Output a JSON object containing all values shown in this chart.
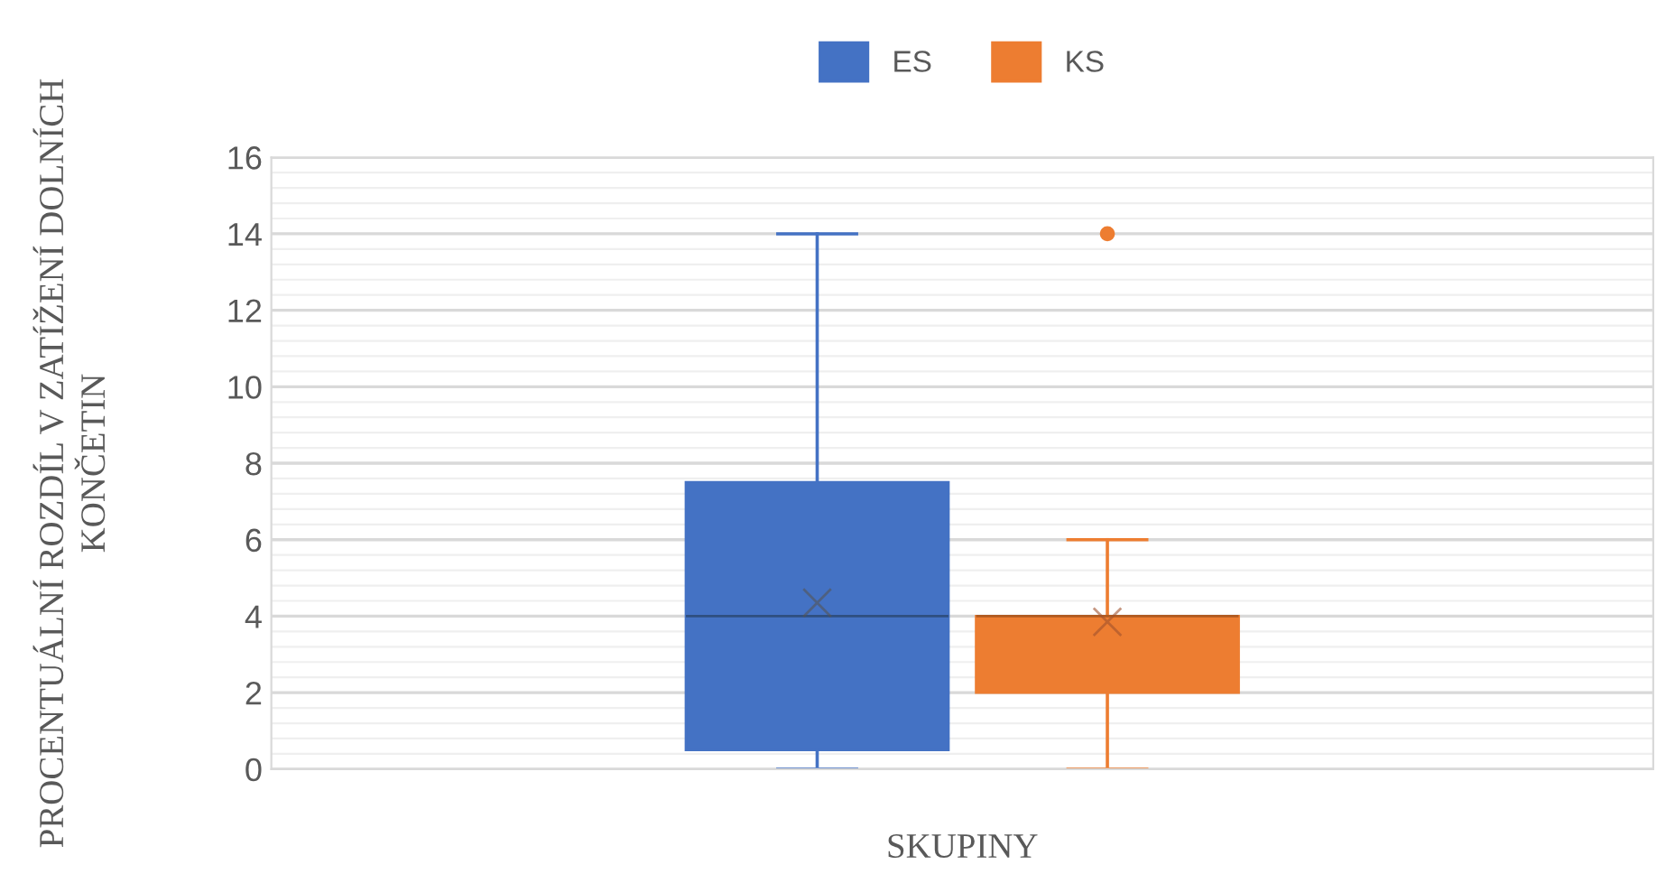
{
  "chart_data": {
    "type": "box",
    "xlabel": "SKUPINY",
    "ylabel": "PROCENTUÁLNÍ ROZDÍL V ZATÍŽENÍ DOLNÍCH KONČETIN",
    "categories": [
      null
    ],
    "series": [
      {
        "name": "ES",
        "color": "#4472c4",
        "boxes": [
          {
            "low": 0,
            "q1": 0.5,
            "median": 4,
            "q3": 7.5,
            "high": 14,
            "mean": 4.35
          }
        ]
      },
      {
        "name": "KS",
        "color": "#ed7d31",
        "boxes": [
          {
            "low": 0,
            "q1": 2,
            "median": 4,
            "q3": 4,
            "high": 6,
            "mean": 3.85,
            "outliers": [
              14
            ]
          }
        ]
      }
    ],
    "ylim": [
      0,
      16
    ],
    "yticks": [
      0,
      2,
      4,
      6,
      8,
      10,
      12,
      14,
      16
    ],
    "grid": "y",
    "legend": "top",
    "marker": "cross"
  }
}
